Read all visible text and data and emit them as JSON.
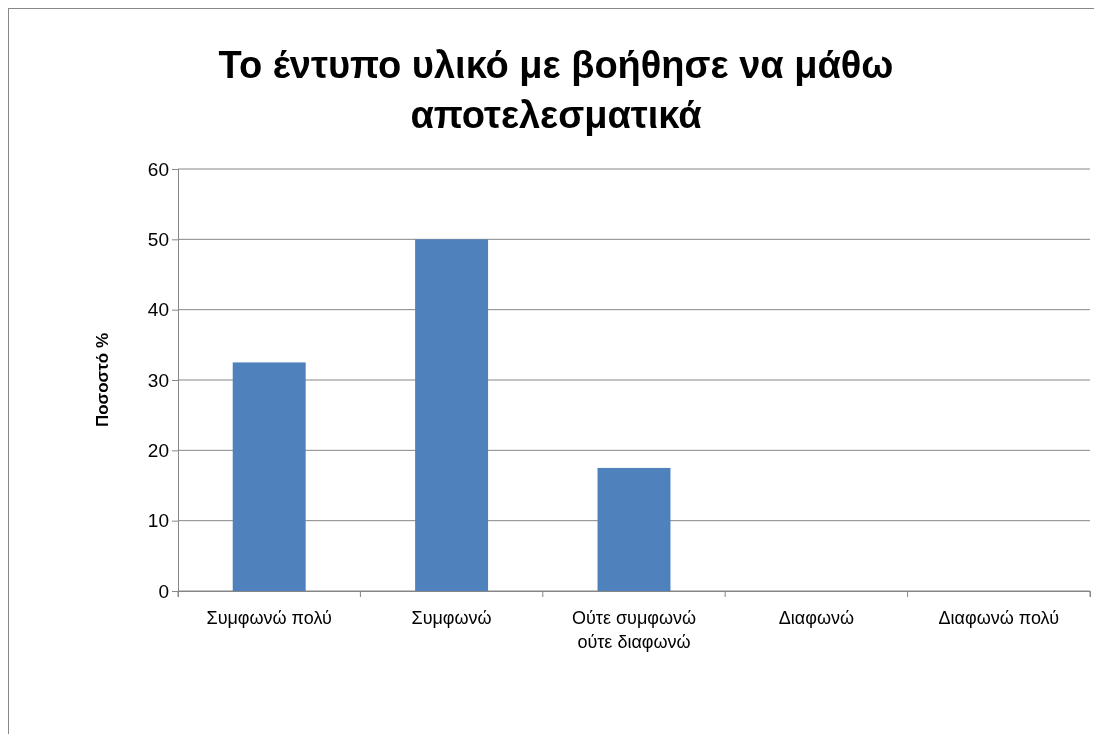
{
  "chart_data": {
    "type": "bar",
    "title": "Το έντυπο υλικό με βοήθησε να μάθω αποτελεσματικά",
    "ylabel": "Ποσοστό %",
    "categories": [
      "Συμφωνώ πολύ",
      "Συμφωνώ",
      "Ούτε συμφωνώ ούτε διαφωνώ",
      "Διαφωνώ",
      "Διαφωνώ πολύ"
    ],
    "values": [
      32.5,
      50,
      17.5,
      0,
      0
    ],
    "color": "#4f81bd",
    "ylim": [
      0,
      60
    ],
    "yticks": [
      0,
      10,
      20,
      30,
      40,
      50,
      60
    ],
    "grid": "y"
  }
}
